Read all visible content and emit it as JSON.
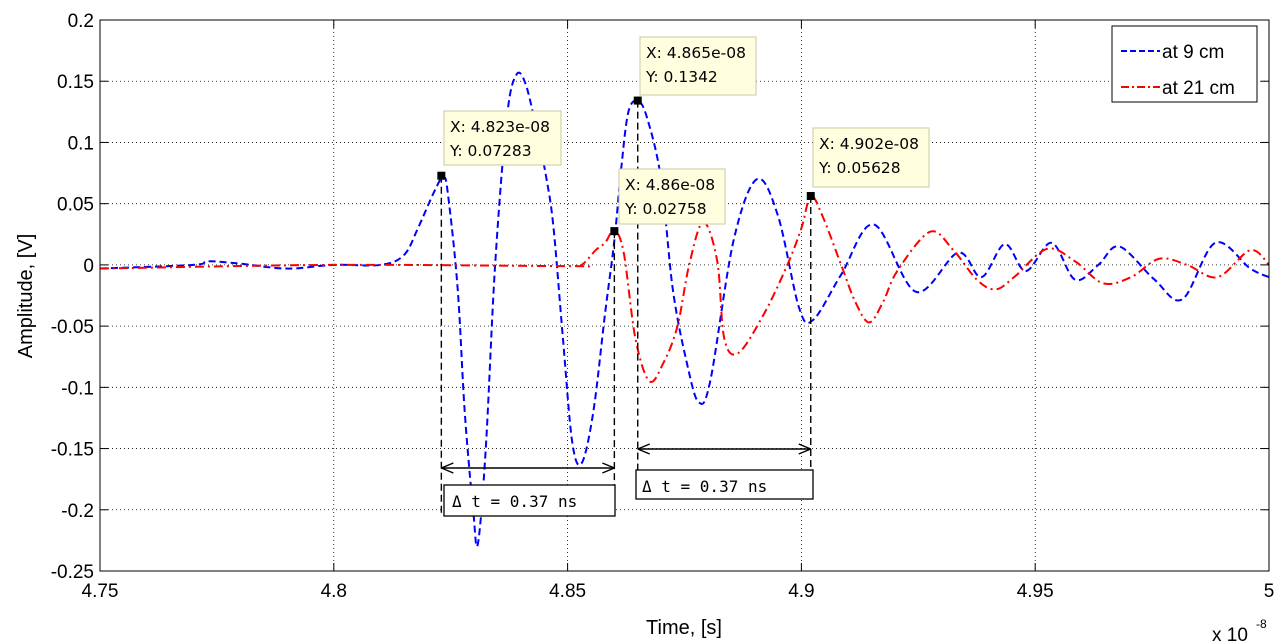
{
  "chart_data": {
    "type": "line",
    "title": "",
    "xlabel": "Time, [s]",
    "ylabel": "Amplitude, [V]",
    "x_multiplier_label": "x 10",
    "x_multiplier_exponent": "-8",
    "xlim": [
      4.75,
      5.0
    ],
    "ylim": [
      -0.25,
      0.2
    ],
    "x_units_scale": 1e-08,
    "grid": true,
    "xticks": [
      4.75,
      4.8,
      4.85,
      4.9,
      4.95,
      5.0
    ],
    "xtick_labels": [
      "4.75",
      "4.8",
      "4.85",
      "4.9",
      "4.95",
      "5"
    ],
    "yticks": [
      -0.25,
      -0.2,
      -0.15,
      -0.1,
      -0.05,
      0,
      0.05,
      0.1,
      0.15,
      0.2
    ],
    "ytick_labels": [
      "-0.25",
      "-0.2",
      "-0.15",
      "-0.1",
      "-0.05",
      "0",
      "0.05",
      "0.1",
      "0.15",
      "0.2"
    ],
    "legend_position": "top-right",
    "series": [
      {
        "name": "at 9 cm",
        "color": "#0000ff",
        "style": "dashed",
        "x": [
          4.75,
          4.77,
          4.773,
          4.78,
          4.79,
          4.8,
          4.81,
          4.815,
          4.818,
          4.8215,
          4.8235,
          4.8245,
          4.8265,
          4.828,
          4.8298,
          4.8308,
          4.8325,
          4.8345,
          4.837,
          4.839,
          4.841,
          4.8435,
          4.8455,
          4.847,
          4.849,
          4.851,
          4.853,
          4.8555,
          4.858,
          4.86,
          4.8615,
          4.863,
          4.865,
          4.867,
          4.87,
          4.8725,
          4.8755,
          4.878,
          4.8805,
          4.8855,
          4.8905,
          4.895,
          4.8995,
          4.9025,
          4.9085,
          4.9155,
          4.9245,
          4.9335,
          4.9385,
          4.9435,
          4.948,
          4.9535,
          4.9585,
          4.9635,
          4.968,
          4.9755,
          4.9815,
          4.9885,
          4.996,
          5.0
        ],
        "values": [
          -0.003,
          0.0,
          0.003,
          0.001,
          -0.003,
          0.0,
          0.0,
          0.008,
          0.03,
          0.06,
          0.072,
          0.055,
          -0.02,
          -0.12,
          -0.2,
          -0.228,
          -0.15,
          0.0,
          0.12,
          0.155,
          0.148,
          0.108,
          0.07,
          0.03,
          -0.06,
          -0.145,
          -0.162,
          -0.12,
          -0.04,
          0.02,
          0.08,
          0.125,
          0.134,
          0.12,
          0.07,
          -0.02,
          -0.08,
          -0.112,
          -0.095,
          0.02,
          0.07,
          0.04,
          -0.035,
          -0.045,
          -0.008,
          0.033,
          -0.022,
          0.01,
          -0.01,
          0.017,
          -0.005,
          0.018,
          -0.012,
          0.0,
          0.015,
          -0.012,
          -0.028,
          0.018,
          -0.003,
          -0.01
        ]
      },
      {
        "name": "at 21 cm",
        "color": "#ff0000",
        "style": "dash-dot",
        "x": [
          4.75,
          4.8,
          4.85,
          4.853,
          4.856,
          4.858,
          4.86,
          4.862,
          4.8645,
          4.8675,
          4.8705,
          4.8735,
          4.876,
          4.879,
          4.882,
          4.8835,
          4.8865,
          4.892,
          4.897,
          4.9,
          4.902,
          4.9045,
          4.9085,
          4.9115,
          4.9145,
          4.9175,
          4.9205,
          4.9275,
          4.9325,
          4.9375,
          4.9415,
          4.9455,
          4.9525,
          4.9585,
          4.9645,
          4.9705,
          4.9765,
          4.9825,
          4.989,
          4.996,
          5.0
        ],
        "values": [
          -0.003,
          0.0,
          -0.001,
          0.0,
          0.012,
          0.018,
          0.028,
          0.01,
          -0.06,
          -0.095,
          -0.08,
          -0.05,
          0.0,
          0.035,
          0.003,
          -0.06,
          -0.072,
          -0.04,
          0.0,
          0.03,
          0.056,
          0.04,
          0.0,
          -0.03,
          -0.047,
          -0.03,
          -0.005,
          0.027,
          0.012,
          -0.012,
          -0.02,
          -0.01,
          0.013,
          0.003,
          -0.015,
          -0.01,
          0.005,
          0.0,
          -0.01,
          0.012,
          0.0
        ]
      }
    ],
    "datatips": [
      {
        "x": 4.823,
        "y": 0.07283,
        "label_x": "X: 4.823e-08",
        "label_y": "Y: 0.07283"
      },
      {
        "x": 4.86,
        "y": 0.02758,
        "label_x": "X: 4.86e-08",
        "label_y": "Y: 0.02758"
      },
      {
        "x": 4.865,
        "y": 0.1342,
        "label_x": "X: 4.865e-08",
        "label_y": "Y: 0.1342"
      },
      {
        "x": 4.902,
        "y": 0.05628,
        "label_x": "X: 4.902e-08",
        "label_y": "Y: 0.05628"
      }
    ],
    "annotations": [
      {
        "from": 4.823,
        "to": 4.86,
        "text": "Δ t = 0.37 ns"
      },
      {
        "from": 4.865,
        "to": 4.902,
        "text": "Δ t = 0.37 ns"
      }
    ]
  }
}
